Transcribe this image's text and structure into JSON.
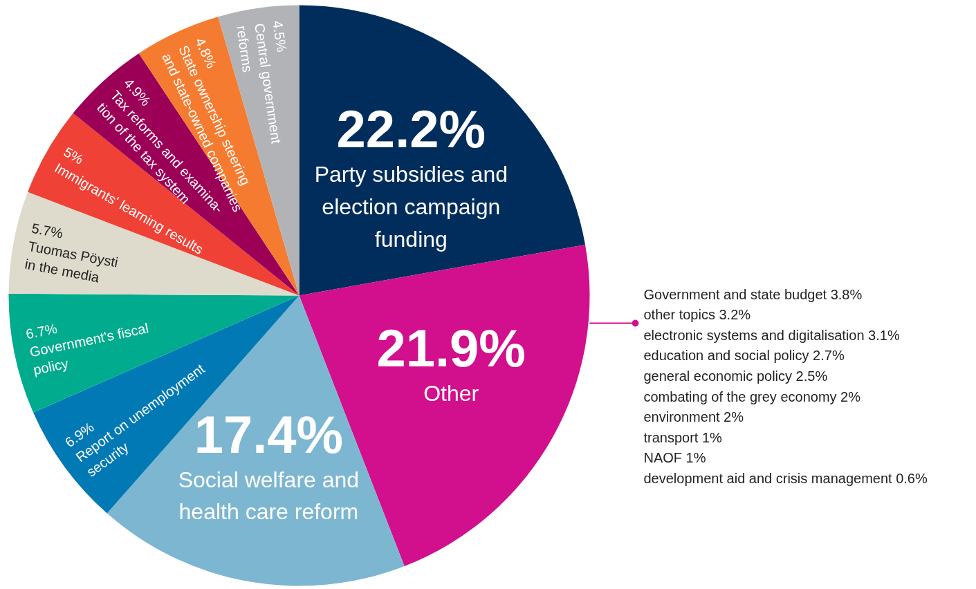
{
  "chart_data": {
    "type": "pie",
    "categories": [
      "Party subsidies and\nelection campaign\nfunding",
      "Other",
      "Social welfare and\nhealth care reform",
      "Report on unemployment\nsecurity",
      "Government's fiscal\npolicy",
      "Tuomas Pöysti\nin the media",
      "Immigrants' learning results",
      "Tax reforms and examina-\ntion of the tax system",
      "State ownership steering\nand state-owned companies",
      "Central government\nreforms"
    ],
    "values": [
      22.2,
      21.9,
      17.4,
      6.9,
      6.7,
      5.7,
      5,
      4.9,
      4.8,
      4.5
    ],
    "value_labels": [
      "22.2%",
      "21.9%",
      "17.4%",
      "6.9%",
      "6.7%",
      "5.7%",
      "5%",
      "4.9%",
      "4.8%",
      "4.5%"
    ],
    "colors": [
      "#002d5c",
      "#d20f8c",
      "#7db6d0",
      "#0079b4",
      "#00ab8e",
      "#dedbcc",
      "#ef4136",
      "#9b0056",
      "#f47b30",
      "#b1b3b6"
    ],
    "annotations": [
      "Government and state budget 3.8%",
      "other topics 3.2%",
      "electronic systems and digitalisation 3.1%",
      "education and social policy 2.7%",
      "general economic policy 2.5%",
      "combating of the grey economy 2%",
      " environment 2%",
      "transport 1%",
      "NAOF 1%",
      "development aid and crisis management 0.6%"
    ]
  }
}
